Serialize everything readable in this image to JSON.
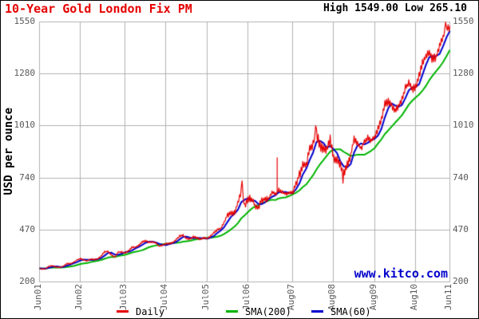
{
  "header": {
    "title": "10-Year Gold London Fix PM",
    "high_low": "High 1549.00 Low 265.10"
  },
  "watermark": "www.kitco.com",
  "colors": {
    "title": "#e60000",
    "daily": "#e60000",
    "sma200": "#00b400",
    "sma60": "#0000cc",
    "grid": "#b0b0b0",
    "tick_text": "#595959",
    "watermark": "#0000cc",
    "background": "#ffffff",
    "border": "#000000"
  },
  "chart_data": {
    "type": "line",
    "title": "10-Year Gold London Fix PM",
    "xlabel": "",
    "ylabel": "USD per ounce",
    "high": 1549.0,
    "low": 265.1,
    "ylim": [
      200,
      1550
    ],
    "yticks": [
      200,
      470,
      740,
      1010,
      1280,
      1550
    ],
    "grid": true,
    "legend_position": "bottom",
    "start_month": "2001-06",
    "step": "monthly",
    "total_months": 120,
    "xtick_labels": [
      "Jun01",
      "Jun02",
      "Jul03",
      "Jul04",
      "Jul05",
      "Jul06",
      "Aug07",
      "Aug08",
      "Aug09",
      "Aug10",
      "Jun11"
    ],
    "xtick_month_offsets": [
      0,
      12,
      25,
      37,
      49,
      61,
      74,
      86,
      98,
      110,
      120
    ],
    "legend": [
      {
        "label": "Daily",
        "color": "#e60000"
      },
      {
        "label": "SMA(200)",
        "color": "#00b400"
      },
      {
        "label": "SMA(60)",
        "color": "#0000cc"
      }
    ],
    "series": [
      {
        "name": "Daily",
        "color": "#e60000",
        "values": [
          270,
          267,
          272,
          283,
          283,
          276,
          276,
          281,
          295,
          294,
          302,
          314,
          321,
          313,
          310,
          319,
          316,
          319,
          333,
          357,
          359,
          340,
          328,
          355,
          356,
          351,
          360,
          379,
          379,
          389,
          407,
          414,
          405,
          407,
          403,
          384,
          392,
          398,
          400,
          405,
          420,
          439,
          442,
          424,
          423,
          434,
          429,
          422,
          430,
          424,
          437,
          456,
          470,
          476,
          510,
          550,
          555,
          557,
          611,
          675,
          596,
          634,
          632,
          598,
          586,
          627,
          630,
          631,
          665,
          655,
          679,
          667,
          655,
          665,
          665,
          713,
          755,
          806,
          803,
          890,
          922,
          968,
          910,
          889,
          889,
          940,
          839,
          829,
          807,
          761,
          816,
          858,
          943,
          924,
          890,
          929,
          946,
          934,
          949,
          996,
          1043,
          1127,
          1135,
          1118,
          1095,
          1113,
          1148,
          1205,
          1232,
          1193,
          1215,
          1271,
          1342,
          1369,
          1390,
          1356,
          1372,
          1424,
          1473,
          1510,
          1529
        ]
      },
      {
        "name": "SMA(60)",
        "color": "#0000cc",
        "values": [
          270,
          269,
          270,
          274,
          279,
          281,
          278,
          278,
          284,
          290,
          297,
          303,
          312,
          316,
          315,
          314,
          315,
          318,
          323,
          336,
          350,
          352,
          342,
          341,
          346,
          354,
          356,
          363,
          373,
          382,
          392,
          403,
          409,
          409,
          405,
          398,
          393,
          391,
          397,
          401,
          408,
          421,
          434,
          435,
          430,
          427,
          429,
          428,
          427,
          425,
          430,
          439,
          454,
          467,
          485,
          512,
          538,
          554,
          574,
          614,
          627,
          635,
          621,
          621,
          605,
          604,
          614,
          629,
          642,
          650,
          666,
          667,
          667,
          662,
          662,
          681,
          711,
          758,
          788,
          833,
          872,
          927,
          933,
          922,
          896,
          906,
          889,
          869,
          825,
          799,
          795,
          812,
          872,
          908,
          919,
          914,
          922,
          936,
          943,
          960,
          996,
          1055,
          1102,
          1127,
          1116,
          1109,
          1119,
          1155,
          1195,
          1210,
          1213,
          1226,
          1276,
          1327,
          1367,
          1372,
          1373,
          1384,
          1423,
          1469,
          1504
        ]
      },
      {
        "name": "SMA(200)",
        "color": "#00b400",
        "values": [
          270,
          269,
          270,
          273,
          275,
          275,
          275,
          276,
          278,
          280,
          283,
          288,
          293,
          296,
          298,
          303,
          307,
          310,
          314,
          320,
          326,
          329,
          329,
          334,
          338,
          341,
          346,
          352,
          356,
          360,
          364,
          372,
          380,
          385,
          389,
          393,
          396,
          398,
          400,
          402,
          403,
          405,
          409,
          411,
          413,
          418,
          421,
          424,
          427,
          429,
          430,
          432,
          435,
          440,
          449,
          460,
          473,
          487,
          505,
          530,
          546,
          563,
          580,
          592,
          599,
          607,
          615,
          622,
          627,
          625,
          634,
          637,
          639,
          646,
          654,
          663,
          675,
          693,
          706,
          730,
          754,
          784,
          810,
          832,
          855,
          877,
          886,
          888,
          888,
          875,
          865,
          854,
          857,
          861,
          861,
          860,
          870,
          881,
          895,
          919,
          941,
          968,
          987,
          1007,
          1027,
          1046,
          1066,
          1093,
          1121,
          1141,
          1158,
          1173,
          1193,
          1218,
          1248,
          1272,
          1295,
          1316,
          1341,
          1372,
          1404
        ]
      }
    ],
    "daily_extremes": [
      {
        "month_index": 1.5,
        "value": 265.1
      },
      {
        "month_index": 59.2,
        "value": 725
      },
      {
        "month_index": 69.5,
        "value": 845,
        "glitch": true
      },
      {
        "month_index": 81.2,
        "value": 1011
      },
      {
        "month_index": 89.3,
        "value": 713
      },
      {
        "month_index": 119.3,
        "value": 1549
      }
    ]
  }
}
